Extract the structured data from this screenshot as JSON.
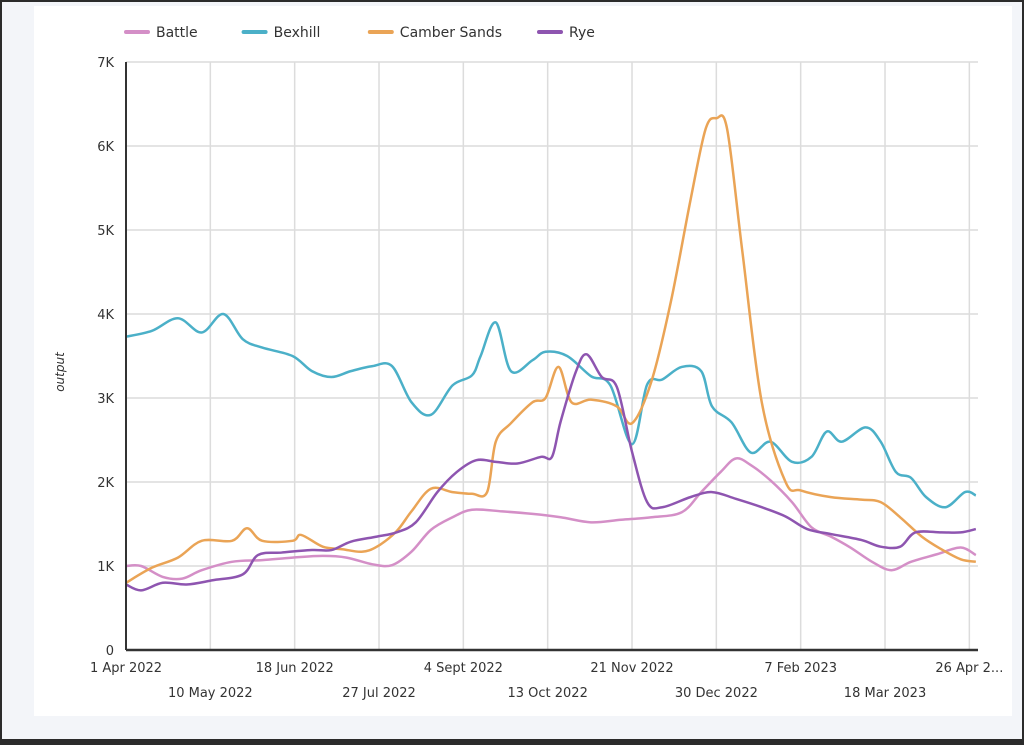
{
  "chart_data": {
    "type": "line",
    "title": "",
    "xlabel": "",
    "ylabel": "output",
    "x_unit": "days since 1 Apr 2022",
    "xlim": [
      0,
      394
    ],
    "ylim": [
      0,
      7000
    ],
    "yticks": [
      0,
      1000,
      2000,
      3000,
      4000,
      5000,
      6000,
      7000
    ],
    "ytick_labels": [
      "0",
      "1K",
      "2K",
      "3K",
      "4K",
      "5K",
      "6K",
      "7K"
    ],
    "xticks": [
      {
        "day": 0,
        "label": "1 Apr 2022",
        "row": 0
      },
      {
        "day": 39,
        "label": "10 May 2022",
        "row": 1
      },
      {
        "day": 78,
        "label": "18 Jun 2022",
        "row": 0
      },
      {
        "day": 117,
        "label": "27 Jul 2022",
        "row": 1
      },
      {
        "day": 156,
        "label": "4 Sept 2022",
        "row": 0
      },
      {
        "day": 195,
        "label": "13 Oct 2022",
        "row": 1
      },
      {
        "day": 234,
        "label": "21 Nov 2022",
        "row": 0
      },
      {
        "day": 273,
        "label": "30 Dec 2022",
        "row": 1
      },
      {
        "day": 312,
        "label": "7 Feb 2023",
        "row": 0
      },
      {
        "day": 351,
        "label": "18 Mar 2023",
        "row": 1
      },
      {
        "day": 390,
        "label": "26 Apr 2...",
        "row": 0
      }
    ],
    "grid": true,
    "legend_position": "top-left",
    "series": [
      {
        "name": "Battle",
        "color": "#d48fc7",
        "points": [
          [
            0,
            1000
          ],
          [
            7,
            1000
          ],
          [
            17,
            870
          ],
          [
            26,
            850
          ],
          [
            35,
            950
          ],
          [
            49,
            1050
          ],
          [
            63,
            1070
          ],
          [
            77,
            1100
          ],
          [
            91,
            1120
          ],
          [
            102,
            1100
          ],
          [
            114,
            1020
          ],
          [
            123,
            1010
          ],
          [
            132,
            1170
          ],
          [
            141,
            1430
          ],
          [
            151,
            1580
          ],
          [
            160,
            1670
          ],
          [
            174,
            1650
          ],
          [
            188,
            1620
          ],
          [
            201,
            1580
          ],
          [
            215,
            1520
          ],
          [
            229,
            1550
          ],
          [
            243,
            1580
          ],
          [
            257,
            1640
          ],
          [
            266,
            1880
          ],
          [
            275,
            2120
          ],
          [
            282,
            2280
          ],
          [
            289,
            2200
          ],
          [
            298,
            2020
          ],
          [
            308,
            1760
          ],
          [
            317,
            1460
          ],
          [
            326,
            1350
          ],
          [
            335,
            1220
          ],
          [
            345,
            1050
          ],
          [
            354,
            950
          ],
          [
            363,
            1050
          ],
          [
            375,
            1140
          ],
          [
            386,
            1220
          ],
          [
            393,
            1130
          ]
        ]
      },
      {
        "name": "Bexhill",
        "color": "#4bb0c8",
        "points": [
          [
            0,
            3730
          ],
          [
            12,
            3800
          ],
          [
            24,
            3950
          ],
          [
            35,
            3780
          ],
          [
            45,
            4000
          ],
          [
            54,
            3700
          ],
          [
            63,
            3600
          ],
          [
            77,
            3500
          ],
          [
            86,
            3320
          ],
          [
            95,
            3250
          ],
          [
            104,
            3320
          ],
          [
            114,
            3380
          ],
          [
            123,
            3380
          ],
          [
            132,
            2950
          ],
          [
            141,
            2800
          ],
          [
            151,
            3150
          ],
          [
            160,
            3270
          ],
          [
            164,
            3500
          ],
          [
            171,
            3900
          ],
          [
            178,
            3320
          ],
          [
            188,
            3450
          ],
          [
            194,
            3550
          ],
          [
            204,
            3500
          ],
          [
            215,
            3260
          ],
          [
            224,
            3150
          ],
          [
            234,
            2450
          ],
          [
            241,
            3160
          ],
          [
            248,
            3220
          ],
          [
            257,
            3370
          ],
          [
            266,
            3320
          ],
          [
            271,
            2900
          ],
          [
            280,
            2710
          ],
          [
            289,
            2350
          ],
          [
            298,
            2480
          ],
          [
            308,
            2240
          ],
          [
            317,
            2300
          ],
          [
            324,
            2600
          ],
          [
            331,
            2480
          ],
          [
            342,
            2650
          ],
          [
            349,
            2480
          ],
          [
            356,
            2120
          ],
          [
            363,
            2050
          ],
          [
            370,
            1820
          ],
          [
            379,
            1700
          ],
          [
            388,
            1880
          ],
          [
            393,
            1840
          ]
        ]
      },
      {
        "name": "Camber Sands",
        "color": "#eaa456",
        "points": [
          [
            0,
            800
          ],
          [
            12,
            980
          ],
          [
            24,
            1100
          ],
          [
            35,
            1300
          ],
          [
            49,
            1300
          ],
          [
            56,
            1450
          ],
          [
            63,
            1300
          ],
          [
            77,
            1300
          ],
          [
            81,
            1370
          ],
          [
            91,
            1230
          ],
          [
            100,
            1200
          ],
          [
            109,
            1170
          ],
          [
            116,
            1230
          ],
          [
            125,
            1410
          ],
          [
            132,
            1650
          ],
          [
            141,
            1920
          ],
          [
            151,
            1880
          ],
          [
            160,
            1860
          ],
          [
            167,
            1880
          ],
          [
            171,
            2480
          ],
          [
            178,
            2700
          ],
          [
            188,
            2950
          ],
          [
            194,
            3000
          ],
          [
            200,
            3370
          ],
          [
            206,
            2950
          ],
          [
            215,
            2980
          ],
          [
            227,
            2900
          ],
          [
            234,
            2700
          ],
          [
            243,
            3200
          ],
          [
            252,
            4150
          ],
          [
            261,
            5350
          ],
          [
            268,
            6200
          ],
          [
            273,
            6330
          ],
          [
            278,
            6200
          ],
          [
            285,
            4750
          ],
          [
            294,
            2950
          ],
          [
            305,
            2000
          ],
          [
            312,
            1900
          ],
          [
            326,
            1820
          ],
          [
            340,
            1790
          ],
          [
            349,
            1760
          ],
          [
            358,
            1580
          ],
          [
            368,
            1350
          ],
          [
            377,
            1200
          ],
          [
            386,
            1080
          ],
          [
            393,
            1050
          ]
        ]
      },
      {
        "name": "Rye",
        "color": "#8e55b0",
        "points": [
          [
            0,
            780
          ],
          [
            7,
            710
          ],
          [
            17,
            800
          ],
          [
            28,
            780
          ],
          [
            40,
            830
          ],
          [
            54,
            900
          ],
          [
            61,
            1130
          ],
          [
            72,
            1160
          ],
          [
            86,
            1190
          ],
          [
            95,
            1190
          ],
          [
            104,
            1290
          ],
          [
            116,
            1350
          ],
          [
            125,
            1400
          ],
          [
            134,
            1520
          ],
          [
            144,
            1880
          ],
          [
            153,
            2120
          ],
          [
            162,
            2260
          ],
          [
            171,
            2240
          ],
          [
            181,
            2220
          ],
          [
            192,
            2300
          ],
          [
            197,
            2300
          ],
          [
            201,
            2720
          ],
          [
            208,
            3310
          ],
          [
            213,
            3520
          ],
          [
            220,
            3250
          ],
          [
            227,
            3130
          ],
          [
            234,
            2360
          ],
          [
            241,
            1760
          ],
          [
            248,
            1700
          ],
          [
            261,
            1820
          ],
          [
            271,
            1880
          ],
          [
            282,
            1800
          ],
          [
            294,
            1700
          ],
          [
            305,
            1590
          ],
          [
            315,
            1440
          ],
          [
            326,
            1380
          ],
          [
            340,
            1310
          ],
          [
            349,
            1230
          ],
          [
            358,
            1230
          ],
          [
            365,
            1400
          ],
          [
            377,
            1400
          ],
          [
            386,
            1400
          ],
          [
            393,
            1440
          ]
        ]
      }
    ]
  }
}
